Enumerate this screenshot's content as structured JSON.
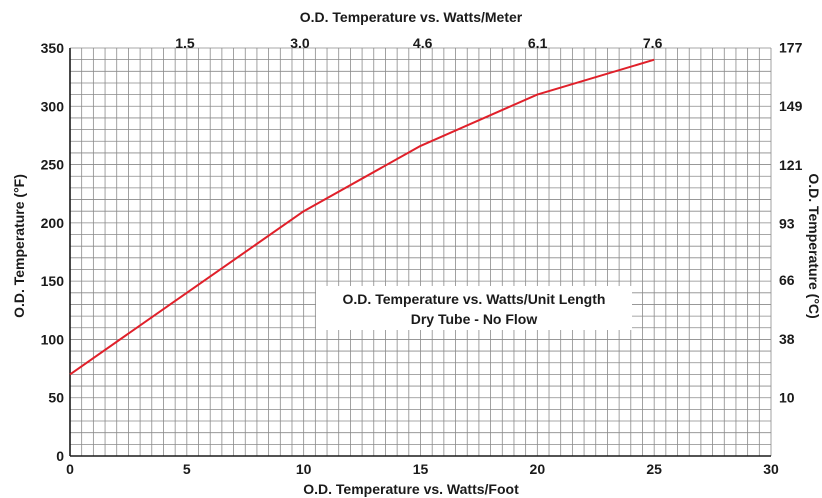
{
  "chart_data": {
    "type": "line",
    "top_title": "O.D. Temperature vs. Watts/Meter",
    "xlabel": "O.D. Temperature vs. Watts/Foot",
    "ylabel": "O.D. Temperature (°F)",
    "ylabel_right": "O.D. Temperature (°C)",
    "annotation": {
      "line1": "O.D. Temperature vs. Watts/Unit Length",
      "line2": "Dry Tube - No Flow"
    },
    "xlim": [
      0,
      30
    ],
    "ylim": [
      0,
      350
    ],
    "x_ticks": [
      "0",
      "5",
      "10",
      "15",
      "20",
      "25",
      "30"
    ],
    "y_ticks": [
      "0",
      "50",
      "100",
      "150",
      "200",
      "250",
      "300",
      "350"
    ],
    "top_ticks": [
      "1.5",
      "3.0",
      "4.6",
      "6.1",
      "7.6"
    ],
    "right_ticks": [
      "10",
      "38",
      "66",
      "93",
      "121",
      "149",
      "177"
    ],
    "grid": true,
    "line_color": "#e0202a",
    "series": [
      {
        "x": [
          0,
          5,
          10,
          15,
          20,
          25
        ],
        "y": [
          70,
          140,
          210,
          266,
          310,
          340
        ]
      }
    ]
  }
}
